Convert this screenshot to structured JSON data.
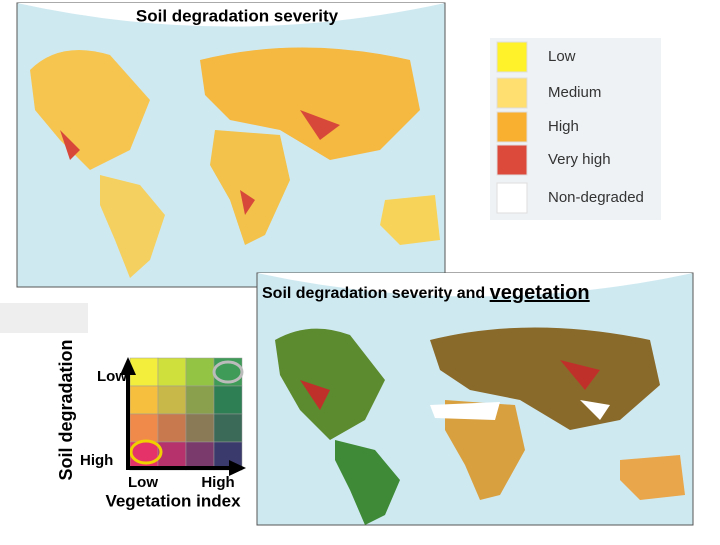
{
  "map1": {
    "title": "Soil degradation severity"
  },
  "legend": {
    "items": [
      {
        "label": "Low",
        "color": "#fff12a"
      },
      {
        "label": "Medium",
        "color": "#ffdf70"
      },
      {
        "label": "High",
        "color": "#f9b030"
      },
      {
        "label": "Very high",
        "color": "#dc4a3c"
      },
      {
        "label": "Non-degraded",
        "color": "#ffffff"
      }
    ]
  },
  "map2": {
    "title": "Soil degradation severity and",
    "title_emphasis": "vegetation"
  },
  "bivariate_legend": {
    "y_axis_label": "Soil degradation",
    "y_low": "Low",
    "y_high": "High",
    "x_axis_label": "Vegetation index",
    "x_low": "Low",
    "x_high": "High",
    "cells": [
      [
        "#f3ee3c",
        "#cfe03c",
        "#93c444",
        "#3e9c58"
      ],
      [
        "#f6c03e",
        "#c8b84a",
        "#8aa04c",
        "#2f7f55"
      ],
      [
        "#f08a4a",
        "#c87a4e",
        "#8a7a55",
        "#3b6a58"
      ],
      [
        "#e5336a",
        "#b5326c",
        "#7a3a6c",
        "#3b3a6c"
      ]
    ]
  }
}
